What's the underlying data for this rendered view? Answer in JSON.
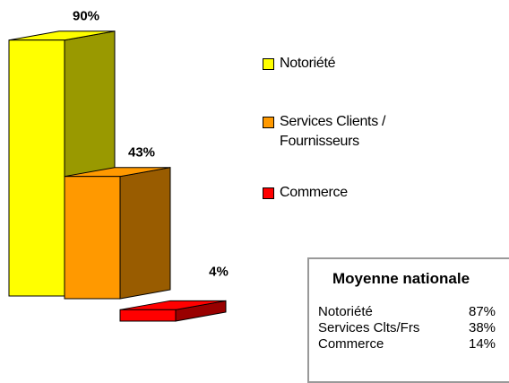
{
  "chart_data": {
    "type": "bar3d",
    "categories": [
      "Notoriété",
      "Services Clients / Fournisseurs",
      "Commerce"
    ],
    "values": [
      90,
      43,
      4
    ],
    "value_labels": [
      "90%",
      "43%",
      "4%"
    ],
    "colors": [
      "#ffff00",
      "#ff9900",
      "#ff0000"
    ]
  },
  "national_average": {
    "title": "Moyenne nationale",
    "rows": [
      [
        "Notoriété",
        "87%"
      ],
      [
        "Services Clts/Frs",
        "38%"
      ],
      [
        "Commerce",
        "14%"
      ]
    ]
  }
}
